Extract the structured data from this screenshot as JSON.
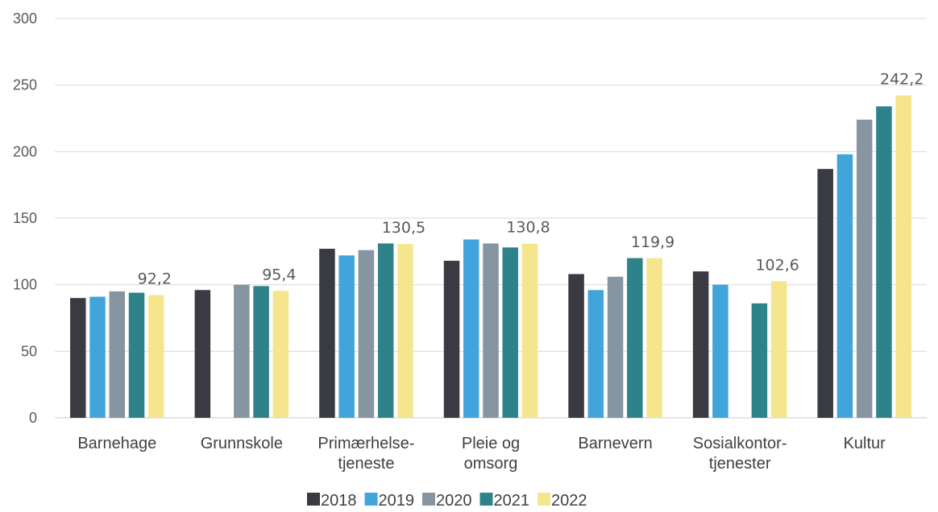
{
  "chart_data": {
    "type": "bar",
    "categories": [
      [
        "Barnehage"
      ],
      [
        "Grunnskole"
      ],
      [
        "Primærhelse-",
        "tjeneste"
      ],
      [
        "Pleie og",
        "omsorg"
      ],
      [
        "Barnevern"
      ],
      [
        "Sosialkontor-",
        "tjenester"
      ],
      [
        "Kultur"
      ]
    ],
    "series": [
      {
        "name": "2018",
        "color": "#3a3a42",
        "values": [
          90,
          96,
          127,
          118,
          108,
          110,
          187
        ]
      },
      {
        "name": "2019",
        "color": "#41a5dc",
        "values": [
          91,
          null,
          122,
          134,
          96,
          100,
          198
        ]
      },
      {
        "name": "2020",
        "color": "#8795a0",
        "values": [
          95,
          100,
          126,
          131,
          106,
          null,
          224
        ]
      },
      {
        "name": "2021",
        "color": "#2e828a",
        "values": [
          94,
          99,
          131,
          128,
          120,
          86,
          234
        ]
      },
      {
        "name": "2022",
        "color": "#f5e58c",
        "values": [
          92.2,
          95.4,
          130.5,
          130.8,
          119.9,
          102.6,
          242.2
        ]
      }
    ],
    "data_labels": [
      "92,2",
      "95,4",
      "130,5",
      "130,8",
      "119,9",
      "102,6",
      "242,2"
    ],
    "y_ticks": [
      "0",
      "50",
      "100",
      "150",
      "200",
      "250",
      "300"
    ],
    "ylim": [
      0,
      300
    ],
    "grid": true,
    "legend_position": "bottom"
  }
}
